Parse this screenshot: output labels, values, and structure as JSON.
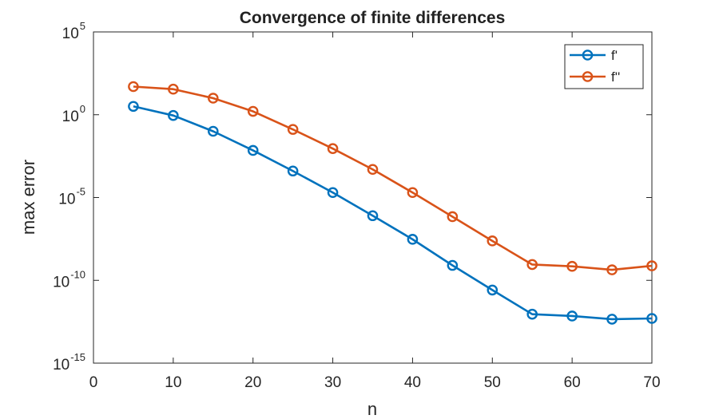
{
  "chart_data": {
    "type": "line",
    "title": "Convergence of finite differences",
    "xlabel": "n",
    "ylabel": "max error",
    "xlim": [
      0,
      70
    ],
    "xticks": [
      "0",
      "10",
      "20",
      "30",
      "40",
      "50",
      "60",
      "70"
    ],
    "yscale": "log",
    "ylim": [
      1e-15,
      100000.0
    ],
    "yticks": [
      {
        "base": "10",
        "exp": "-15",
        "value": 1e-15
      },
      {
        "base": "10",
        "exp": "-10",
        "value": 1e-10
      },
      {
        "base": "10",
        "exp": "-5",
        "value": 1e-05
      },
      {
        "base": "10",
        "exp": "0",
        "value": 1
      },
      {
        "base": "10",
        "exp": "5",
        "value": 100000.0
      }
    ],
    "grid": false,
    "legend_position": "top-right",
    "x": [
      5,
      10,
      15,
      20,
      25,
      30,
      35,
      40,
      45,
      50,
      55,
      60,
      65,
      70
    ],
    "series": [
      {
        "name": "f'",
        "color": "#0072BD",
        "values": [
          3.2,
          0.9,
          0.1,
          0.007,
          0.0004,
          2e-05,
          8e-07,
          3e-08,
          8e-10,
          2.6e-11,
          9e-13,
          7e-13,
          4.5e-13,
          5e-13
        ]
      },
      {
        "name": "f''",
        "color": "#D95319",
        "values": [
          50,
          35,
          10,
          1.6,
          0.13,
          0.009,
          0.0005,
          2e-05,
          7e-07,
          2.4e-08,
          9e-10,
          7e-10,
          4.3e-10,
          7.5e-10
        ]
      }
    ]
  }
}
